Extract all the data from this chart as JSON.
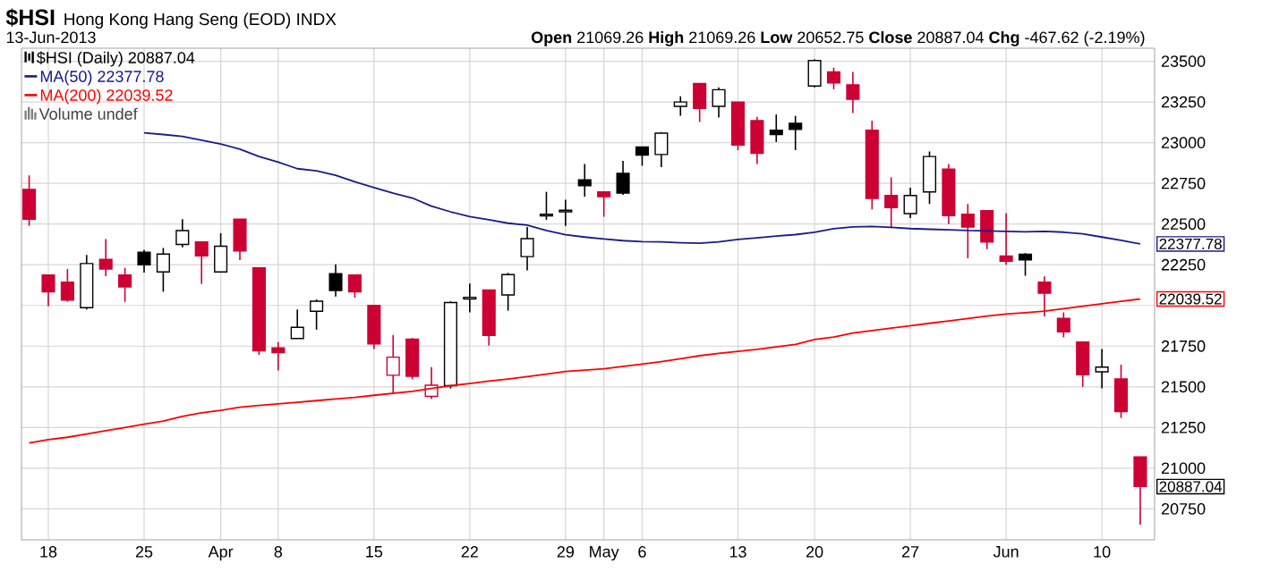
{
  "chart_data": {
    "type": "candlestick",
    "title": "$HSI",
    "subtitle": "Hong Kong Hang Seng (EOD) INDX",
    "annotations": [
      "13-Jun-2013",
      "**Open** 21069.26 **High** 21069.26 **Low** 20652.75 **Close** 20887.04 **Chg** -467.62 (-2.19%)",
      "Volume undef",
      "22377.78",
      "22039.52",
      "20887.04"
    ],
    "categories": [
      null,
      "18",
      null,
      null,
      null,
      null,
      "25",
      null,
      null,
      null,
      "Apr",
      null,
      null,
      "8",
      null,
      null,
      null,
      null,
      "15",
      null,
      null,
      null,
      null,
      "22",
      null,
      null,
      null,
      null,
      "29",
      null,
      "May",
      null,
      "6",
      null,
      null,
      null,
      null,
      "13",
      null,
      null,
      null,
      "20",
      null,
      null,
      null,
      null,
      "27",
      null,
      null,
      null,
      null,
      "Jun",
      null,
      null,
      null,
      null,
      "10",
      null,
      null
    ],
    "series": [
      {
        "name": "$HSI (Daily) 20887.04",
        "color": "#000000",
        "colors": [
          "#cc0033",
          "#cc0033",
          "#cc0033",
          "#000000",
          "#cc0033",
          "#cc0033",
          "#000000",
          "#000000",
          "#000000",
          "#cc0033",
          "#000000",
          "#cc0033",
          "#cc0033",
          "#cc0033",
          "#000000",
          "#000000",
          "#000000",
          "#cc0033",
          "#cc0033",
          "#cc0033",
          "#cc0033",
          "#cc0033",
          "#000000",
          "#000000",
          "#cc0033",
          "#000000",
          "#000000",
          "#000000",
          "#000000",
          "#000000",
          "#cc0033",
          "#000000",
          "#000000",
          "#000000",
          "#000000",
          "#cc0033",
          "#000000",
          "#cc0033",
          "#cc0033",
          "#000000",
          "#000000",
          "#000000",
          "#cc0033",
          "#cc0033",
          "#cc0033",
          "#cc0033",
          "#000000",
          "#000000",
          "#cc0033",
          "#cc0033",
          "#cc0033",
          "#cc0033",
          "#000000",
          "#cc0033",
          "#cc0033",
          "#cc0033",
          "#000000",
          "#cc0033",
          "#cc0033"
        ],
        "ohlc": [
          [
            22713,
            22799,
            22489,
            22530
          ],
          [
            22187,
            22187,
            21996,
            22084
          ],
          [
            22143,
            22224,
            22022,
            22033
          ],
          [
            21986,
            22310,
            21975,
            22257
          ],
          [
            22283,
            22408,
            22180,
            22224
          ],
          [
            22187,
            22231,
            22022,
            22114
          ],
          [
            22327,
            22342,
            22202,
            22250
          ],
          [
            22206,
            22353,
            22084,
            22316
          ],
          [
            22375,
            22530,
            22357,
            22460
          ],
          [
            22390,
            22390,
            22132,
            22305
          ],
          [
            22206,
            22444,
            22206,
            22364
          ],
          [
            22530,
            22530,
            22279,
            22335
          ],
          [
            22231,
            22231,
            21696,
            21721
          ],
          [
            21739,
            21775,
            21600,
            21710
          ],
          [
            21797,
            21975,
            21797,
            21865
          ],
          [
            21964,
            22037,
            21851,
            22026
          ],
          [
            22195,
            22253,
            22055,
            22092
          ],
          [
            22187,
            22187,
            22048,
            22084
          ],
          [
            22000,
            22000,
            21732,
            21764
          ],
          [
            21571,
            21818,
            21457,
            21682
          ],
          [
            21793,
            21800,
            21546,
            21565
          ],
          [
            21441,
            21621,
            21424,
            21510
          ],
          [
            21507,
            22025,
            21490,
            22018
          ],
          [
            22040,
            22135,
            21957,
            22050
          ],
          [
            22095,
            22095,
            21753,
            21815
          ],
          [
            22064,
            22200,
            21968,
            22189
          ],
          [
            22300,
            22482,
            22215,
            22410
          ],
          [
            22550,
            22698,
            22526,
            22560
          ],
          [
            22575,
            22649,
            22489,
            22585
          ],
          [
            22772,
            22869,
            22668,
            22735
          ],
          [
            22698,
            22698,
            22545,
            22668
          ],
          [
            22811,
            22888,
            22679,
            22690
          ],
          [
            22973,
            22973,
            22858,
            22923
          ],
          [
            22927,
            23065,
            22850,
            23058
          ],
          [
            23223,
            23285,
            23165,
            23250
          ],
          [
            23363,
            23363,
            23127,
            23211
          ],
          [
            23223,
            23340,
            23154,
            23325
          ],
          [
            23250,
            23250,
            22954,
            22985
          ],
          [
            23135,
            23158,
            22869,
            22935
          ],
          [
            23077,
            23173,
            23004,
            23050
          ],
          [
            23119,
            23165,
            22954,
            23081
          ],
          [
            23348,
            23512,
            23340,
            23504
          ],
          [
            23434,
            23461,
            23328,
            23367
          ],
          [
            23355,
            23434,
            23182,
            23266
          ],
          [
            23077,
            23135,
            22590,
            22657
          ],
          [
            22675,
            22787,
            22474,
            22601
          ],
          [
            22564,
            22723,
            22537,
            22675
          ],
          [
            22697,
            22946,
            22623,
            22915
          ],
          [
            22838,
            22869,
            22500,
            22552
          ],
          [
            22560,
            22623,
            22290,
            22481
          ],
          [
            22582,
            22582,
            22346,
            22390
          ],
          [
            22303,
            22567,
            22250,
            22272
          ],
          [
            22315,
            22322,
            22182,
            22280
          ],
          [
            22143,
            22179,
            21932,
            22075
          ],
          [
            21921,
            21957,
            21804,
            21837
          ],
          [
            21775,
            21775,
            21500,
            21574
          ],
          [
            21592,
            21732,
            21490,
            21621
          ],
          [
            21548,
            21636,
            21309,
            21347
          ],
          [
            21069.26,
            21069.26,
            20652.75,
            20887.04
          ]
        ]
      },
      {
        "type": "line",
        "name": "MA(50) 22377.78",
        "color": "#1a1a8c",
        "values": [
          null,
          null,
          null,
          null,
          null,
          null,
          23060,
          23050,
          23038,
          23015,
          22992,
          22960,
          22915,
          22880,
          22840,
          22827,
          22800,
          22760,
          22724,
          22690,
          22660,
          22610,
          22575,
          22545,
          22526,
          22505,
          22493,
          22460,
          22434,
          22420,
          22408,
          22398,
          22392,
          22390,
          22385,
          22382,
          22390,
          22405,
          22415,
          22426,
          22435,
          22450,
          22471,
          22482,
          22485,
          22480,
          22472,
          22468,
          22465,
          22460,
          22458,
          22455,
          22452,
          22455,
          22450,
          22440,
          22420,
          22400,
          22377.78
        ]
      },
      {
        "type": "line",
        "name": "MA(200) 22039.52",
        "color": "#ff0000",
        "values": [
          21155,
          21175,
          21190,
          21210,
          21230,
          21250,
          21270,
          21290,
          21318,
          21340,
          21355,
          21375,
          21385,
          21395,
          21405,
          21415,
          21425,
          21435,
          21448,
          21460,
          21472,
          21490,
          21507,
          21520,
          21535,
          21548,
          21563,
          21578,
          21594,
          21603,
          21611,
          21625,
          21639,
          21655,
          21672,
          21691,
          21705,
          21718,
          21730,
          21745,
          21760,
          21790,
          21806,
          21830,
          21845,
          21860,
          21875,
          21890,
          21905,
          21920,
          21935,
          21947,
          21955,
          21965,
          21980,
          21995,
          22010,
          22025,
          22039.52
        ]
      }
    ],
    "ylim": [
      20560,
      23580
    ],
    "yticks": [
      20750,
      21000,
      21250,
      21500,
      21750,
      {
        "value": 22000,
        "label": null
      },
      22250,
      22500,
      22750,
      23000,
      23250,
      23500
    ],
    "grid": true,
    "legend": "top left"
  }
}
